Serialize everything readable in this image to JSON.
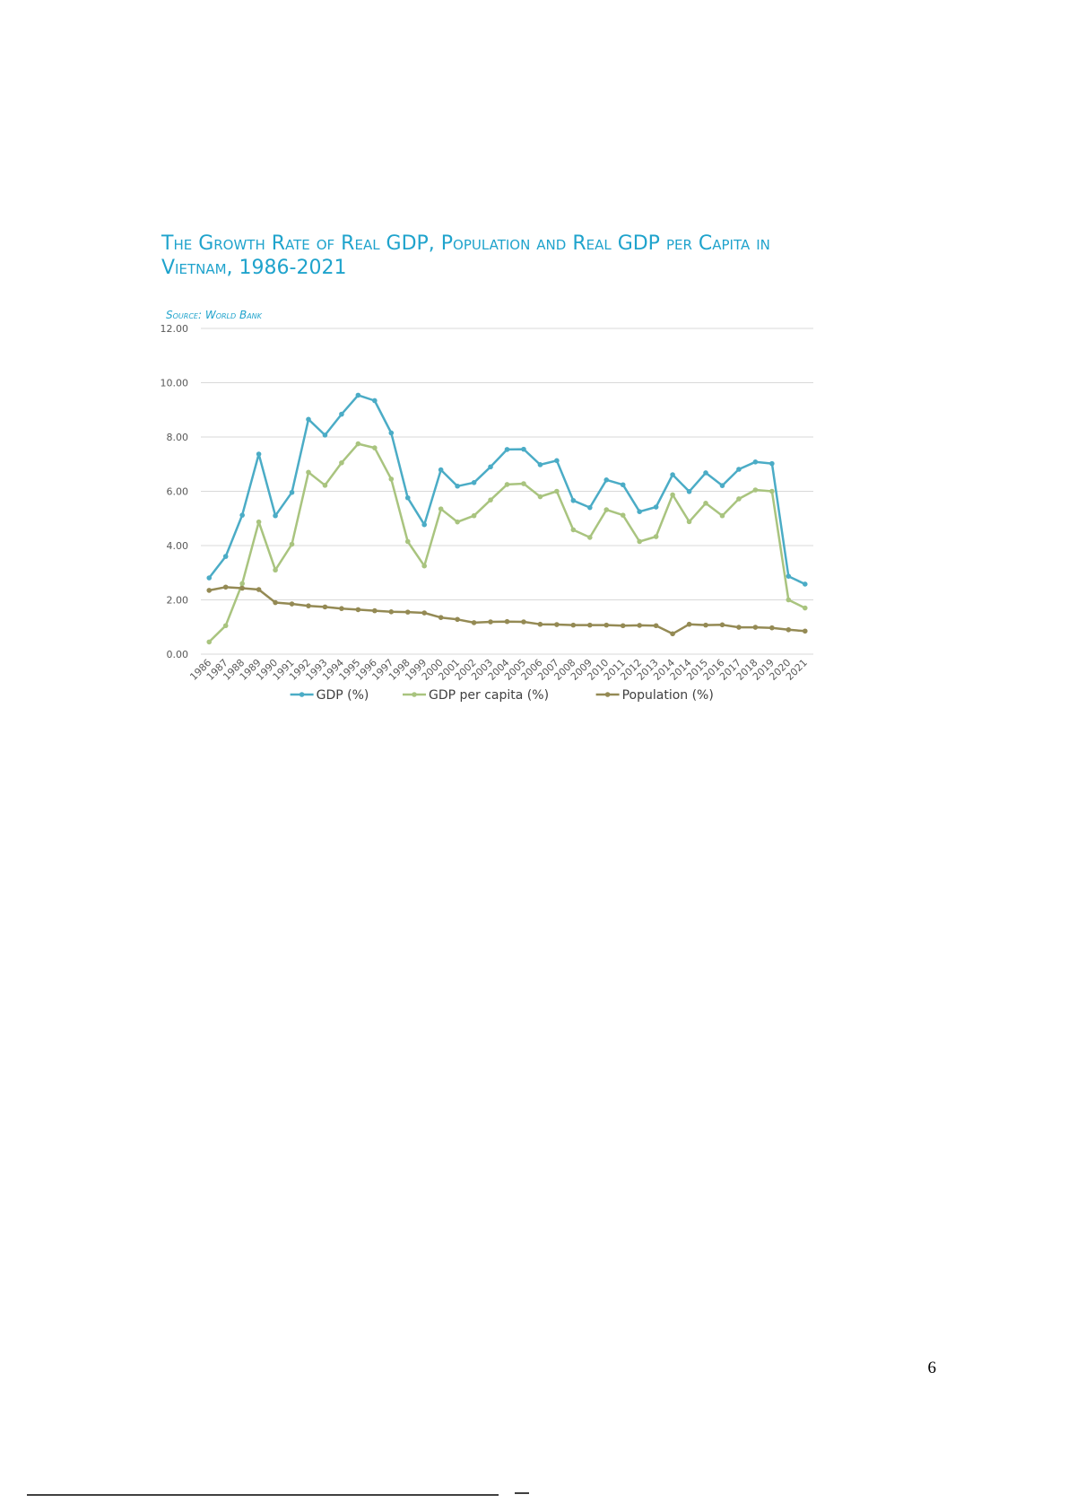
{
  "chart_data": {
    "type": "line",
    "title": "The Growth Rate of Real GDP, Population and Real GDP per Capita in Vietnam, 1986-2021",
    "subtitle": "Source: World Bank",
    "categories": [
      "1986",
      "1987",
      "1988",
      "1989",
      "1990",
      "1991",
      "1992",
      "1993",
      "1994",
      "1995",
      "1996",
      "1997",
      "1998",
      "1999",
      "2000",
      "2001",
      "2002",
      "2003",
      "2004",
      "2005",
      "2006",
      "2007",
      "2008",
      "2009",
      "2010",
      "2011",
      "2012",
      "2013",
      "2014",
      "2014",
      "2015",
      "2016",
      "2017",
      "2018",
      "2019",
      "2020",
      "2021"
    ],
    "series": [
      {
        "name": "GDP (%)",
        "color": "#4bacc6",
        "values": [
          2.81,
          3.6,
          5.12,
          7.37,
          5.1,
          5.96,
          8.65,
          8.07,
          8.84,
          9.54,
          9.34,
          8.15,
          5.76,
          4.77,
          6.79,
          6.19,
          6.32,
          6.9,
          7.54,
          7.55,
          6.98,
          7.13,
          5.66,
          5.4,
          6.42,
          6.24,
          5.25,
          5.42,
          6.61,
          5.99,
          6.68,
          6.21,
          6.81,
          7.08,
          7.02,
          2.87,
          2.58
        ]
      },
      {
        "name": "GDP per capita (%)",
        "color": "#a9c47f",
        "values": [
          0.45,
          1.05,
          2.6,
          4.87,
          3.1,
          4.05,
          6.7,
          6.22,
          7.05,
          7.75,
          7.6,
          6.45,
          4.15,
          3.25,
          5.35,
          4.87,
          5.1,
          5.68,
          6.25,
          6.28,
          5.8,
          6.0,
          4.58,
          4.3,
          5.32,
          5.12,
          4.15,
          4.33,
          5.87,
          4.88,
          5.56,
          5.1,
          5.72,
          6.05,
          6.0,
          2.0,
          1.7
        ]
      },
      {
        "name": "Population (%)",
        "color": "#948a54",
        "values": [
          2.35,
          2.47,
          2.43,
          2.38,
          1.9,
          1.85,
          1.78,
          1.74,
          1.68,
          1.64,
          1.6,
          1.56,
          1.55,
          1.52,
          1.35,
          1.28,
          1.16,
          1.19,
          1.2,
          1.19,
          1.1,
          1.09,
          1.07,
          1.07,
          1.07,
          1.05,
          1.06,
          1.05,
          0.75,
          1.1,
          1.07,
          1.08,
          0.99,
          0.99,
          0.97,
          0.9,
          0.85
        ]
      }
    ],
    "ylim": [
      0,
      12
    ],
    "yticks": [
      {
        "value": 0,
        "label": "0.00"
      },
      {
        "value": 2,
        "label": "2.00"
      },
      {
        "value": 4,
        "label": "4.00"
      },
      {
        "value": 6,
        "label": "6.00"
      },
      {
        "value": 8,
        "label": "8.00"
      },
      {
        "value": 10,
        "label": "10.00"
      },
      {
        "value": 12,
        "label": "12.00"
      }
    ],
    "grid": true,
    "legend": "bottom"
  },
  "page_number": "6"
}
